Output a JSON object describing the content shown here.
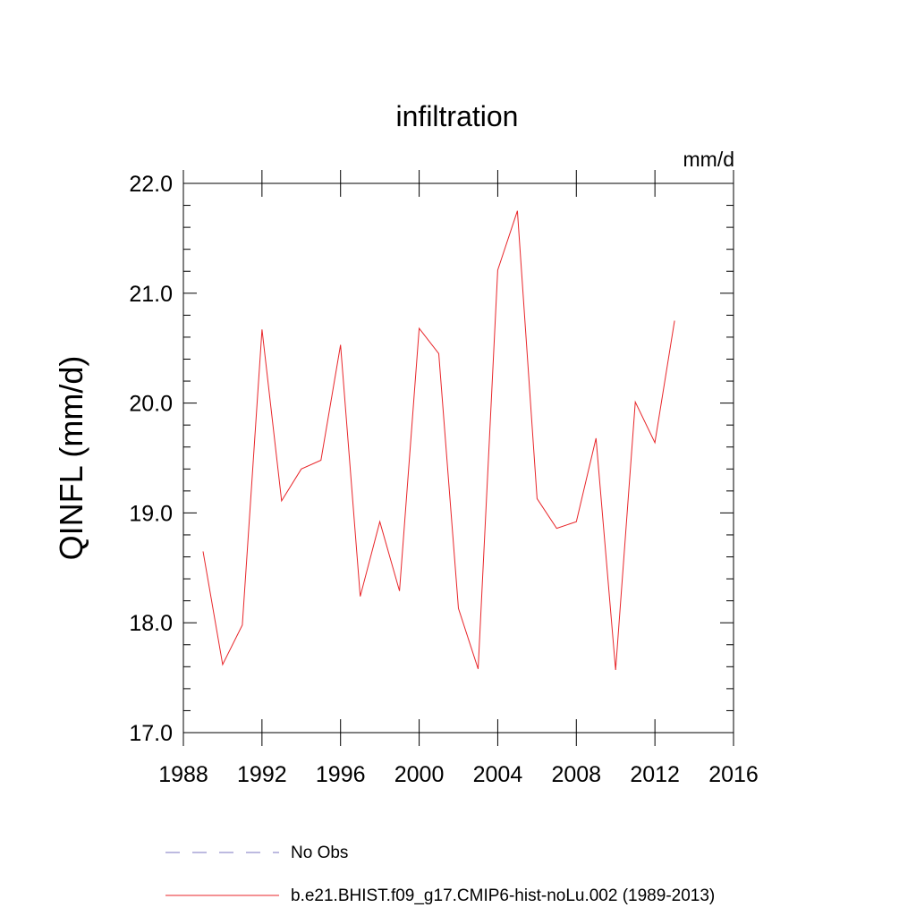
{
  "chart_data": {
    "type": "line",
    "title": "infiltration",
    "units_label": "mm/d",
    "ylabel": "QINFL  (mm/d)",
    "xlabel": "",
    "xlim": [
      1988,
      2016
    ],
    "ylim": [
      17.0,
      22.0
    ],
    "x_ticks": [
      1988,
      1992,
      1996,
      2000,
      2004,
      2008,
      2012,
      2016
    ],
    "x_tick_labels": [
      "1988",
      "1992",
      "1996",
      "2000",
      "2004",
      "2008",
      "2012",
      "2016"
    ],
    "y_ticks": [
      17.0,
      18.0,
      19.0,
      20.0,
      21.0,
      22.0
    ],
    "y_tick_labels": [
      "17.0",
      "18.0",
      "19.0",
      "20.0",
      "21.0",
      "22.0"
    ],
    "grid": false,
    "legend_position": "bottom",
    "legend": [
      {
        "name": "No Obs",
        "color": "#7b74c0",
        "style": "dashed"
      },
      {
        "name": "b.e21.BHIST.f09_g17.CMIP6-hist-noLu.002 (1989-2013)",
        "color": "#e8262a",
        "style": "solid"
      }
    ],
    "series": [
      {
        "name": "b.e21.BHIST.f09_g17.CMIP6-hist-noLu.002 (1989-2013)",
        "color": "#e8262a",
        "x": [
          1989,
          1990,
          1991,
          1992,
          1993,
          1994,
          1995,
          1996,
          1997,
          1998,
          1999,
          2000,
          2001,
          2002,
          2003,
          2004,
          2005,
          2006,
          2007,
          2008,
          2009,
          2010,
          2011,
          2012,
          2013
        ],
        "y": [
          18.65,
          17.62,
          17.98,
          20.67,
          19.11,
          19.4,
          19.48,
          20.53,
          18.24,
          18.92,
          18.29,
          20.68,
          20.45,
          18.13,
          17.58,
          21.21,
          21.75,
          19.13,
          18.86,
          18.92,
          19.68,
          17.57,
          20.01,
          19.64,
          20.75
        ]
      }
    ]
  }
}
